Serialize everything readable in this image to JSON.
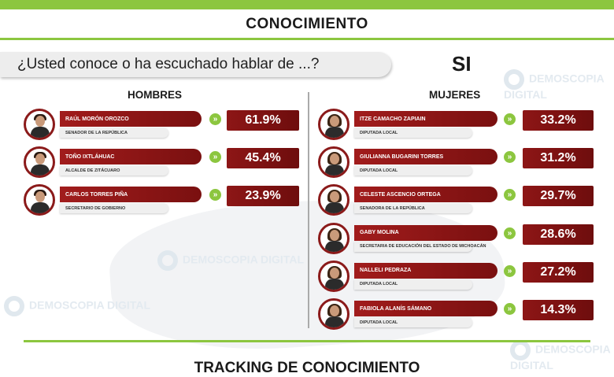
{
  "header": {
    "title": "CONOCIMIENTO"
  },
  "question": "¿Usted conoce o ha escuchado hablar de ...?",
  "answer_label": "SI",
  "columns": {
    "men": "HOMBRES",
    "women": "MUJERES"
  },
  "watermark": "DEMOSCOPIA DIGITAL",
  "footer_title": "TRACKING DE CONOCIMIENTO",
  "colors": {
    "accent_green": "#8cc63f",
    "bar_red": "#8d1616"
  },
  "chart_data": {
    "type": "bar",
    "title": "CONOCIMIENTO",
    "groups": [
      {
        "name": "HOMBRES",
        "items": [
          {
            "name": "RAÚL MORÓN OROZCO",
            "role": "SENADOR DE LA REPÚBLICA",
            "value": 61.9,
            "label": "61.9%"
          },
          {
            "name": "TOÑO IXTLÁHUAC",
            "role": "ALCALDE DE ZITÁCUARO",
            "value": 45.4,
            "label": "45.4%"
          },
          {
            "name": "CARLOS TORRES PIÑA",
            "role": "SECRETARIO DE GOBIERNO",
            "value": 23.9,
            "label": "23.9%"
          }
        ]
      },
      {
        "name": "MUJERES",
        "items": [
          {
            "name": "ITZE CAMACHO ZAPIAIN",
            "role": "DIPUTADA LOCAL",
            "value": 33.2,
            "label": "33.2%"
          },
          {
            "name": "GIULIANNA BUGARINI TORRES",
            "role": "DIPUTADA LOCAL",
            "value": 31.2,
            "label": "31.2%"
          },
          {
            "name": "CELESTE ASCENCIO ORTEGA",
            "role": "SENADORA DE LA REPÚBLICA",
            "value": 29.7,
            "label": "29.7%"
          },
          {
            "name": "GABY MOLINA",
            "role": "SECRETARIA DE EDUCACIÓN DEL ESTADO DE MICHOACÁN",
            "value": 28.6,
            "label": "28.6%"
          },
          {
            "name": "NALLELI PEDRAZA",
            "role": "DIPUTADA LOCAL",
            "value": 27.2,
            "label": "27.2%"
          },
          {
            "name": "FABIOLA ALANÍS SÁMANO",
            "role": "DIPUTADA LOCAL",
            "value": 14.3,
            "label": "14.3%"
          }
        ]
      }
    ]
  }
}
